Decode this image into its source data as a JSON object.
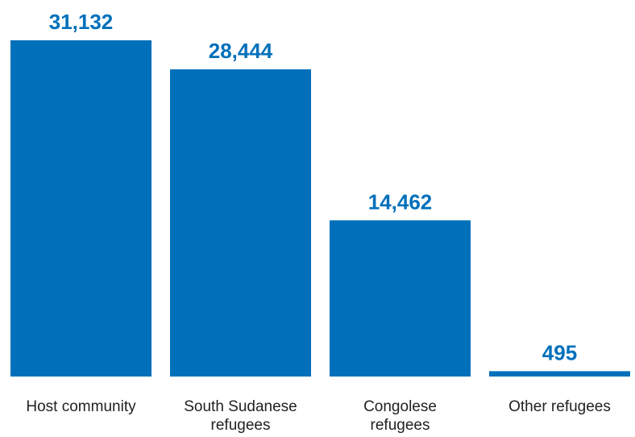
{
  "chart_data": {
    "type": "bar",
    "categories": [
      [
        "Host community"
      ],
      [
        "South Sudanese",
        "refugees"
      ],
      [
        "Congolese",
        "refugees"
      ],
      [
        "Other refugees"
      ]
    ],
    "values": [
      31132,
      28444,
      14462,
      495
    ],
    "value_labels": [
      "31,132",
      "28,444",
      "14,462",
      "495"
    ],
    "title": "",
    "xlabel": "",
    "ylabel": "",
    "ylim": [
      0,
      31132
    ],
    "grid": false,
    "legend": "none",
    "colors": {
      "bar": "#0070bb",
      "value_label": "#0070bb",
      "category_label": "#222222"
    }
  }
}
